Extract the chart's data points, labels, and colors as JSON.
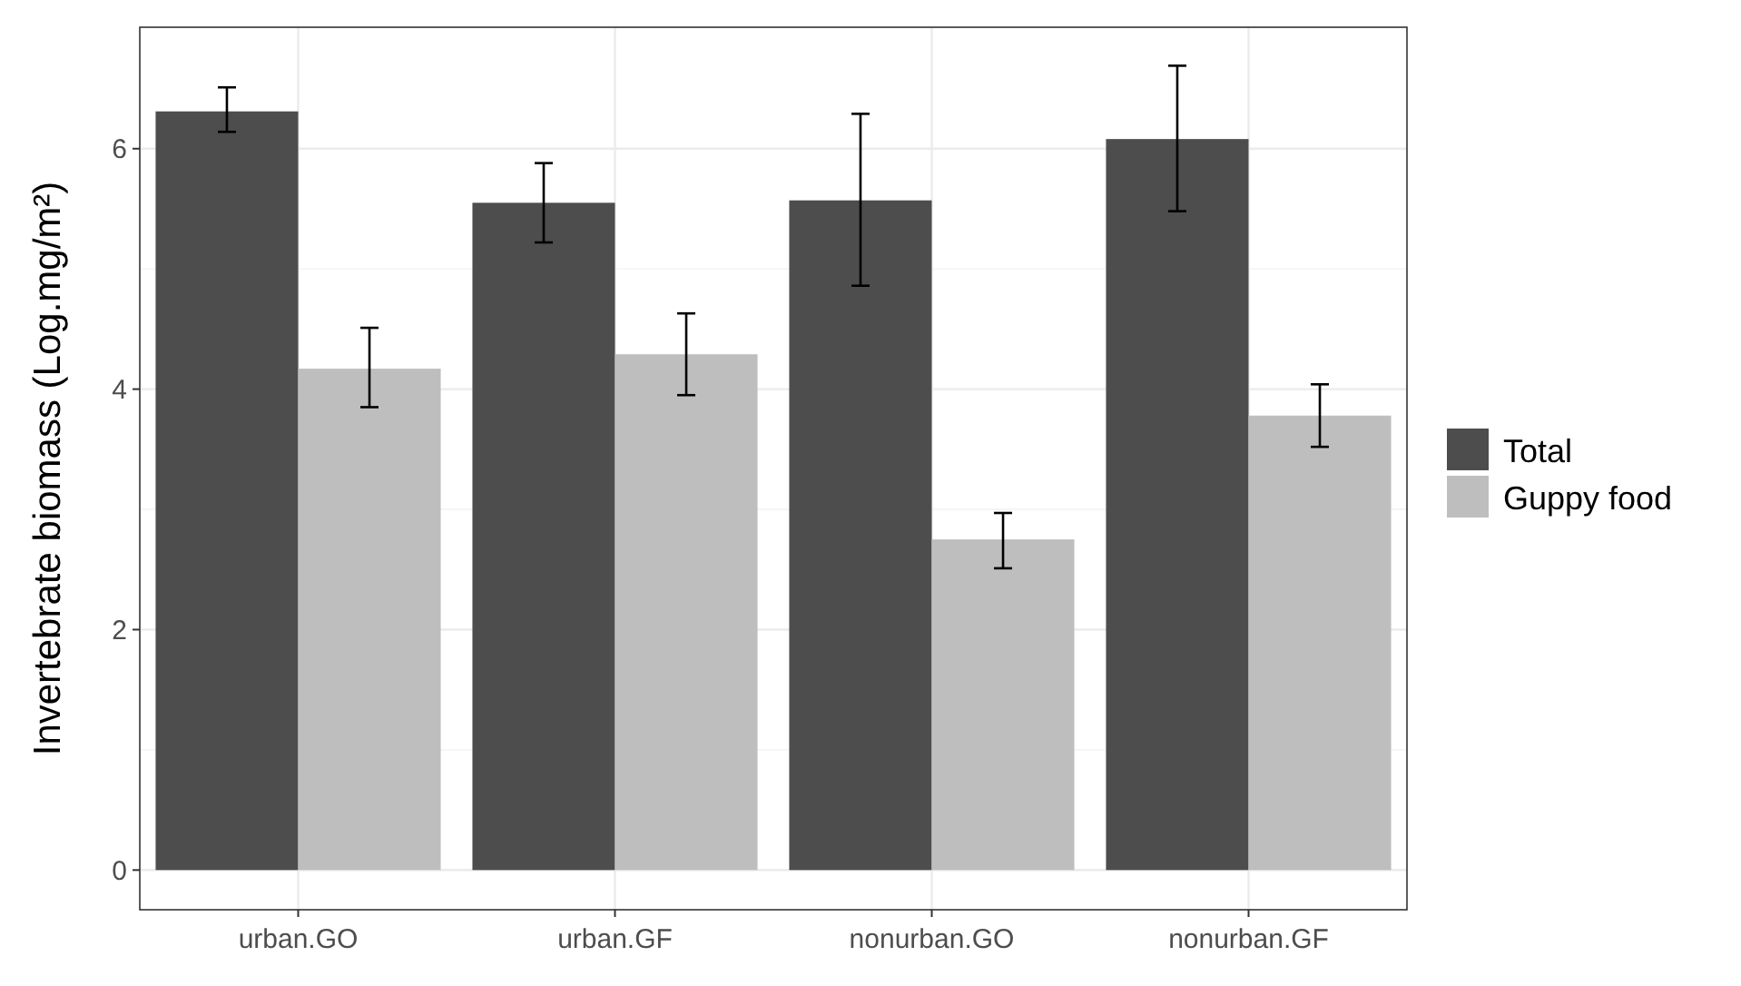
{
  "chart_data": {
    "type": "bar",
    "ylabel": "Invertebrate biomass (Log.mg/m²)",
    "categories": [
      "urban.GO",
      "urban.GF",
      "nonurban.GO",
      "nonurban.GF"
    ],
    "series": [
      {
        "name": "Total",
        "color": "#4d4d4d",
        "values": [
          6.31,
          5.55,
          5.57,
          6.08
        ],
        "errors": [
          [
            6.14,
            6.51
          ],
          [
            5.22,
            5.88
          ],
          [
            4.86,
            6.29
          ],
          [
            5.48,
            6.69
          ]
        ]
      },
      {
        "name": "Guppy food",
        "color": "#bebebe",
        "values": [
          4.17,
          4.29,
          2.75,
          3.78
        ],
        "errors": [
          [
            3.85,
            4.51
          ],
          [
            3.95,
            4.63
          ],
          [
            2.51,
            2.97
          ],
          [
            3.52,
            4.04
          ]
        ]
      }
    ],
    "ylim": [
      -0.33,
      7.01
    ],
    "yticks": [
      0,
      2,
      4,
      6
    ],
    "grid": true,
    "legend": "right"
  }
}
